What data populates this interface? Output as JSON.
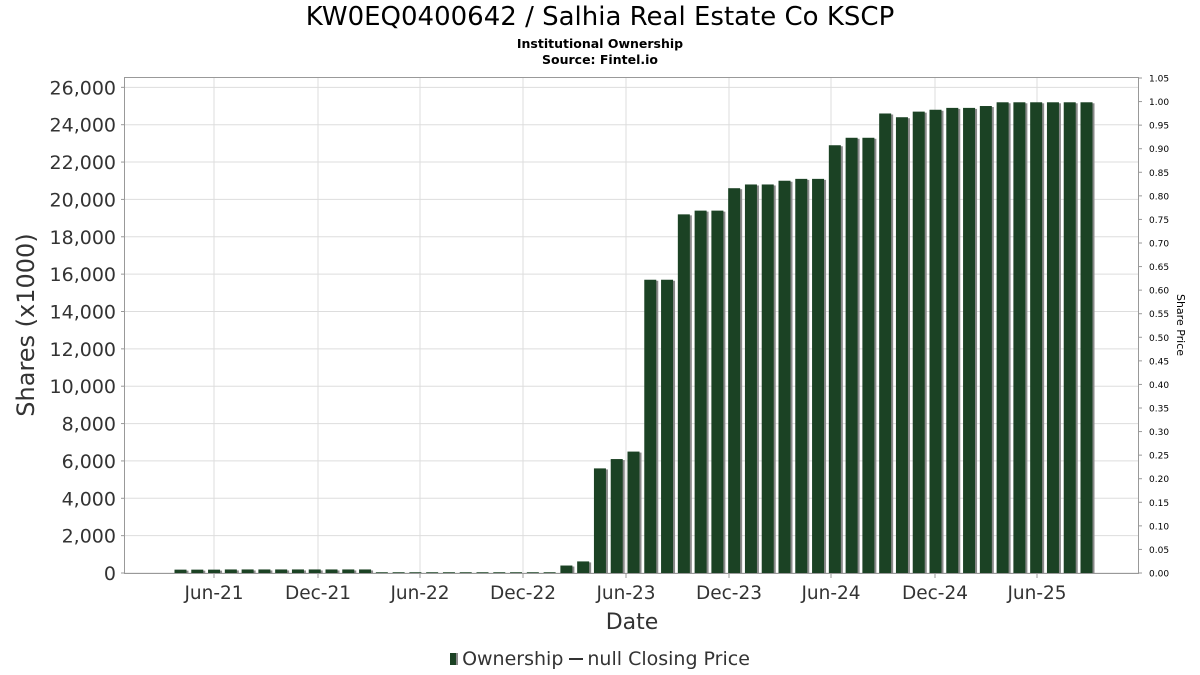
{
  "header": {
    "title": "KW0EQ0400642 / Salhia Real Estate Co KSCP",
    "subtitle": "Institutional Ownership",
    "source": "Source: Fintel.io"
  },
  "legend": {
    "ownership_label": "Ownership",
    "price_label": "null Closing Price"
  },
  "colors": {
    "bar": "#1b4224",
    "bar_shadow": "#8a8a8a",
    "grid": "#dddddd",
    "axis_text": "#333333"
  },
  "chart_data": {
    "type": "bar",
    "title": "KW0EQ0400642 / Salhia Real Estate Co KSCP",
    "subtitle": "Institutional Ownership",
    "xlabel": "Date",
    "ylabel": "Shares (x1000)",
    "y2label": "Share Price",
    "ylim": [
      0,
      26500
    ],
    "y2lim": [
      0,
      1.05
    ],
    "yticks": [
      "0",
      "2,000",
      "4,000",
      "6,000",
      "8,000",
      "10,000",
      "12,000",
      "14,000",
      "16,000",
      "18,000",
      "20,000",
      "22,000",
      "24,000",
      "26,000"
    ],
    "ytick_values": [
      0,
      2000,
      4000,
      6000,
      8000,
      10000,
      12000,
      14000,
      16000,
      18000,
      20000,
      22000,
      24000,
      26000
    ],
    "y2ticks": [
      "0.00",
      "0.05",
      "0.10",
      "0.15",
      "0.20",
      "0.25",
      "0.30",
      "0.35",
      "0.40",
      "0.45",
      "0.50",
      "0.55",
      "0.60",
      "0.65",
      "0.70",
      "0.75",
      "0.80",
      "0.85",
      "0.90",
      "0.95",
      "1.00",
      "1.05"
    ],
    "xticks": [
      "Jun-21",
      "Dec-21",
      "Jun-22",
      "Dec-22",
      "Jun-23",
      "Dec-23",
      "Jun-24",
      "Dec-24",
      "Jun-25"
    ],
    "grid": true,
    "legend_position": "bottom",
    "series": [
      {
        "name": "Ownership",
        "values": [
          180,
          180,
          180,
          190,
          190,
          190,
          190,
          190,
          190,
          190,
          190,
          190,
          40,
          40,
          40,
          40,
          40,
          40,
          40,
          40,
          40,
          40,
          40,
          400,
          620,
          5600,
          6100,
          6500,
          15700,
          15700,
          19200,
          19400,
          19400,
          20600,
          20800,
          20800,
          21000,
          21100,
          21100,
          22900,
          23300,
          23300,
          24600,
          24400,
          24700,
          24800,
          24900,
          24900,
          25000,
          25200,
          25200,
          25200,
          25200,
          25200,
          25200
        ]
      }
    ]
  }
}
